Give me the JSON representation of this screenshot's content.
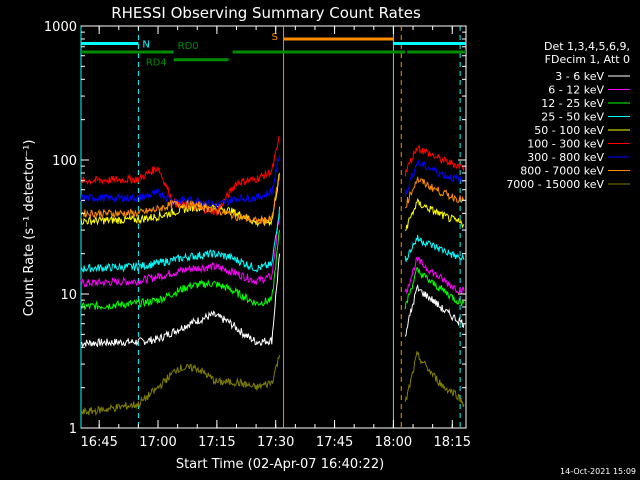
{
  "chart_data": {
    "type": "line",
    "title": "RHESSI Observing Summary Count Rates",
    "xlabel": "Start Time (02-Apr-07 16:40:22)",
    "ylabel": "Count Rate (s⁻¹ detector⁻¹)",
    "y_scale": "log",
    "ylim": [
      1,
      1000
    ],
    "xlim": [
      "16:40:22",
      "18:18:30"
    ],
    "x_ticks": [
      "16:45",
      "17:00",
      "17:15",
      "17:30",
      "17:45",
      "18:00",
      "18:15"
    ],
    "y_ticks": [
      "1",
      "10",
      "100",
      "1000"
    ],
    "date_stamp": "14-Oct-2021 15:09",
    "legend_header": [
      "Det 1,3,4,5,6,9,",
      "FDecim 1, Att 0"
    ],
    "series": [
      {
        "name": "3 - 6 keV",
        "color": "#ffffff",
        "x": [
          "16:40:22",
          "16:55",
          "17:00",
          "17:08",
          "17:14",
          "17:18",
          "17:22",
          "17:25",
          "17:29",
          "17:31"
        ],
        "y": [
          4.3,
          4.4,
          4.6,
          6.0,
          7.0,
          6.2,
          5.0,
          4.4,
          4.5,
          20
        ]
      },
      {
        "name": "6 - 12 keV",
        "color": "#ff00ff",
        "x": [
          "16:40:22",
          "16:55",
          "17:00",
          "17:08",
          "17:14",
          "17:18",
          "17:22",
          "17:25",
          "17:29",
          "17:31"
        ],
        "y": [
          12,
          12.5,
          13.5,
          15.5,
          16,
          15,
          13.5,
          12.5,
          13.5,
          40
        ]
      },
      {
        "name": "12 - 25 keV",
        "color": "#00ff00",
        "x": [
          "16:40:22",
          "16:55",
          "17:00",
          "17:08",
          "17:14",
          "17:18",
          "17:22",
          "17:25",
          "17:29",
          "17:31"
        ],
        "y": [
          8,
          8.5,
          9,
          11.5,
          12,
          11,
          9.5,
          8.5,
          9,
          30
        ]
      },
      {
        "name": "25 - 50 keV",
        "color": "#00ffff",
        "x": [
          "16:40:22",
          "16:55",
          "17:00",
          "17:08",
          "17:14",
          "17:18",
          "17:22",
          "17:25",
          "17:29",
          "17:31"
        ],
        "y": [
          15.5,
          16,
          17,
          19,
          20,
          19,
          17,
          15.5,
          16.5,
          45
        ]
      },
      {
        "name": "50 - 100 keV",
        "color": "#ffff00",
        "x": [
          "16:40:22",
          "16:55",
          "17:00",
          "17:08",
          "17:14",
          "17:18",
          "17:22",
          "17:25",
          "17:29",
          "17:31"
        ],
        "y": [
          35,
          36,
          38,
          44,
          45,
          42,
          38,
          34,
          35,
          80
        ]
      },
      {
        "name": "100 - 300 keV",
        "color": "#ff0000",
        "x": [
          "16:40:22",
          "16:55",
          "17:00",
          "17:04",
          "17:10",
          "17:15",
          "17:20",
          "17:25",
          "17:29",
          "17:31"
        ],
        "y": [
          70,
          72,
          88,
          48,
          44,
          41,
          68,
          72,
          82,
          150
        ]
      },
      {
        "name": "300 - 800 keV",
        "color": "#0000ff",
        "x": [
          "16:40:22",
          "16:55",
          "17:00",
          "17:04",
          "17:10",
          "17:15",
          "17:20",
          "17:25",
          "17:29",
          "17:31"
        ],
        "y": [
          52,
          52,
          57,
          50,
          50,
          46,
          52,
          52,
          58,
          110
        ]
      },
      {
        "name": "800 - 7000 keV",
        "color": "#ff8c00",
        "x": [
          "16:40:22",
          "16:55",
          "17:00",
          "17:04",
          "17:10",
          "17:15",
          "17:20",
          "17:25",
          "17:29",
          "17:31"
        ],
        "y": [
          40,
          40,
          43,
          47,
          46,
          42,
          38,
          35,
          36,
          80
        ]
      },
      {
        "name": "7000 - 15000 keV",
        "color": "#808000",
        "x": [
          "16:40:22",
          "16:55",
          "17:00",
          "17:05",
          "17:10",
          "17:15",
          "17:20",
          "17:25",
          "17:29",
          "17:31"
        ],
        "y": [
          1.3,
          1.5,
          2,
          2.8,
          2.8,
          2.2,
          2.2,
          2,
          2.2,
          3.5
        ]
      }
    ],
    "post_gap_series": [
      {
        "name": "3 - 6 keV",
        "x": [
          "18:03",
          "18:06",
          "18:10",
          "18:13",
          "18:16",
          "18:18"
        ],
        "y": [
          5,
          11,
          9,
          7.5,
          6.5,
          6
        ]
      },
      {
        "name": "6 - 12 keV",
        "x": [
          "18:03",
          "18:06",
          "18:10",
          "18:13",
          "18:16",
          "18:18"
        ],
        "y": [
          10,
          18,
          14.5,
          12.5,
          11,
          10.5
        ]
      },
      {
        "name": "12 - 25 keV",
        "x": [
          "18:03",
          "18:06",
          "18:10",
          "18:13",
          "18:16",
          "18:18"
        ],
        "y": [
          8,
          15,
          12,
          10.5,
          9,
          8.5
        ]
      },
      {
        "name": "25 - 50 keV",
        "x": [
          "18:03",
          "18:06",
          "18:10",
          "18:13",
          "18:16",
          "18:18"
        ],
        "y": [
          18,
          26,
          23,
          21,
          19,
          18
        ]
      },
      {
        "name": "50 - 100 keV",
        "x": [
          "18:03",
          "18:06",
          "18:10",
          "18:13",
          "18:16",
          "18:18"
        ],
        "y": [
          30,
          48,
          42,
          38,
          35,
          33
        ]
      },
      {
        "name": "100 - 300 keV",
        "x": [
          "18:03",
          "18:06",
          "18:10",
          "18:13",
          "18:16",
          "18:18"
        ],
        "y": [
          80,
          125,
          108,
          98,
          92,
          88
        ]
      },
      {
        "name": "300 - 800 keV",
        "x": [
          "18:03",
          "18:06",
          "18:10",
          "18:13",
          "18:16",
          "18:18"
        ],
        "y": [
          55,
          95,
          85,
          77,
          72,
          69
        ]
      },
      {
        "name": "800 - 7000 keV",
        "x": [
          "18:03",
          "18:06",
          "18:10",
          "18:13",
          "18:16",
          "18:18"
        ],
        "y": [
          45,
          72,
          62,
          56,
          52,
          50
        ]
      },
      {
        "name": "7000 - 15000 keV",
        "x": [
          "18:03",
          "18:06",
          "18:10",
          "18:13",
          "18:16",
          "18:18"
        ],
        "y": [
          1.5,
          3.5,
          2.5,
          2,
          1.8,
          1.5
        ]
      }
    ],
    "flag_bars": [
      {
        "label": "N",
        "color": "#00ffff",
        "level": 740,
        "segments": [
          [
            "16:40:22",
            "16:55"
          ],
          [
            "18:00",
            "18:18:30"
          ]
        ]
      },
      {
        "label": "S",
        "color": "#ff8c00",
        "level": 800,
        "segments": [
          [
            "17:32",
            "18:00"
          ]
        ]
      },
      {
        "label": "RD0",
        "color": "#008c00",
        "level": 640,
        "segments": [
          [
            "16:40:22",
            "17:04"
          ],
          [
            "17:19",
            "18:03"
          ],
          [
            "18:03:30",
            "18:18:30"
          ]
        ]
      },
      {
        "label": "RD4",
        "color": "#008c00",
        "level": 560,
        "segments": [
          [
            "17:04",
            "17:18"
          ]
        ]
      }
    ],
    "vertical_markers": [
      {
        "x": "16:40:22",
        "color": "#00ffff",
        "style": "solid"
      },
      {
        "x": "16:55",
        "color": "#00ffff",
        "style": "dashed"
      },
      {
        "x": "17:32",
        "color": "#ff8c00",
        "style": "solid"
      },
      {
        "x": "18:00",
        "color": "#00ffff",
        "style": "solid"
      },
      {
        "x": "18:02",
        "color": "#ff8c00",
        "style": "dashed"
      },
      {
        "x": "18:17",
        "color": "#00ffff",
        "style": "dashed"
      }
    ],
    "grid": false,
    "legend_position": "right"
  }
}
